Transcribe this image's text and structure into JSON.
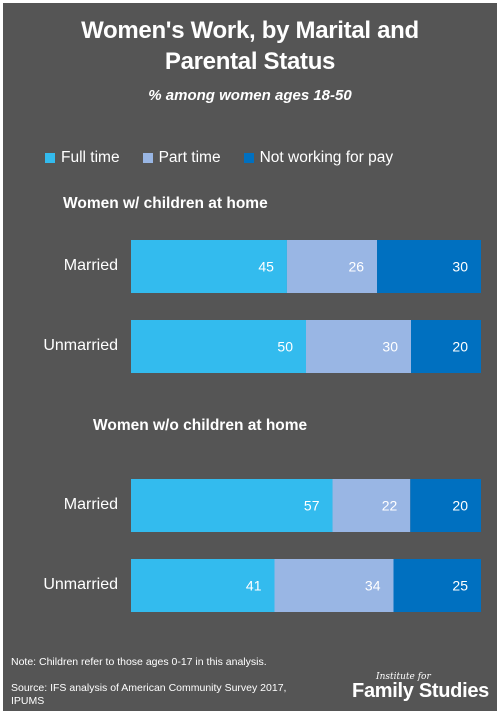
{
  "title": "Women's Work, by Marital and Parental Status",
  "subtitle": "% among women ages 18-50",
  "colors": {
    "background": "#555555",
    "full_time": "#33bbee",
    "part_time": "#99b6e4",
    "not_working": "#0070c0"
  },
  "legend": [
    {
      "label": "Full time",
      "color": "#33bbee"
    },
    {
      "label": "Part time",
      "color": "#99b6e4"
    },
    {
      "label": "Not working for pay",
      "color": "#0070c0"
    }
  ],
  "chart_data": {
    "type": "bar",
    "orientation": "horizontal",
    "stacked": true,
    "title": "Women's Work, by Marital and Parental Status",
    "subtitle": "% among women ages 18-50",
    "legend_position": "top",
    "grid": false,
    "series_names": [
      "Full time",
      "Part time",
      "Not working for pay"
    ],
    "groups": [
      {
        "label": "Women w/ children at home",
        "rows": [
          {
            "label": "Married",
            "values": [
              45,
              26,
              30
            ]
          },
          {
            "label": "Unmarried",
            "values": [
              50,
              30,
              20
            ]
          }
        ]
      },
      {
        "label": "Women w/o children at home",
        "rows": [
          {
            "label": "Married",
            "values": [
              57,
              22,
              20
            ]
          },
          {
            "label": "Unmarried",
            "values": [
              41,
              34,
              25
            ]
          }
        ]
      }
    ]
  },
  "footer": {
    "note": "Note: Children refer to those ages 0-17 in this analysis.",
    "source_line1": "Source: IFS analysis of American Community Survey 2017,",
    "source_line2": "IPUMS",
    "brand_small": "Institute for",
    "brand_big": "Family Studies"
  }
}
